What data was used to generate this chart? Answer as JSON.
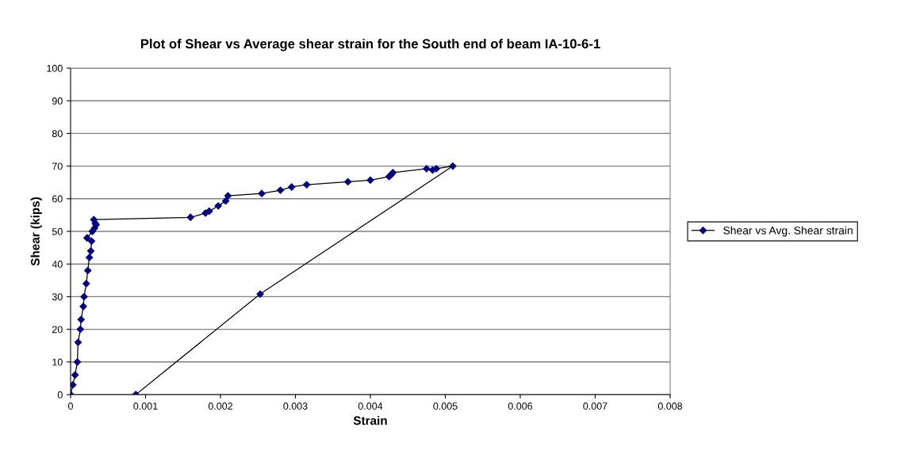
{
  "chart_data": {
    "type": "line",
    "title": "Plot of Shear vs Average shear strain for the South end of beam IA-10-6-1",
    "xlabel": "Strain",
    "ylabel": "Shear (kips)",
    "series": [
      {
        "name": "Shear vs Avg. Shear strain",
        "color": "#000080",
        "x": [
          0,
          3e-05,
          6e-05,
          9e-05,
          0.0001,
          0.00013,
          0.00014,
          0.00017,
          0.00018,
          0.00021,
          0.00023,
          0.00025,
          0.00027,
          0.00028,
          0.00022,
          0.00029,
          0.00032,
          0.00034,
          0.00033,
          0.00031,
          0.0016,
          0.0018,
          0.00185,
          0.00197,
          0.00207,
          0.0021,
          0.00255,
          0.0028,
          0.00295,
          0.00315,
          0.0037,
          0.004,
          0.00425,
          0.00428,
          0.0043,
          0.00475,
          0.00483,
          0.00488,
          0.0051,
          0.00253,
          0.00087
        ],
        "values": [
          0,
          3,
          6,
          10,
          16,
          20,
          23,
          27,
          30,
          34,
          38,
          42,
          44,
          47,
          48,
          50,
          51,
          52,
          52.5,
          53.6,
          54.3,
          55.6,
          56.2,
          57.8,
          59.3,
          60.9,
          61.6,
          62.6,
          63.6,
          64.3,
          65.2,
          65.7,
          66.8,
          67.4,
          68,
          69.2,
          68.8,
          69.2,
          70,
          30.8,
          0
        ]
      }
    ],
    "xlim": [
      0,
      0.008
    ],
    "xticks": [
      0,
      0.001,
      0.002,
      0.003,
      0.004,
      0.005,
      0.006,
      0.007,
      0.008
    ],
    "ylim": [
      0,
      100
    ],
    "yticks": [
      0,
      10,
      20,
      30,
      40,
      50,
      60,
      70,
      80,
      90,
      100
    ],
    "grid": "y",
    "legend": "right",
    "marker": "diamond",
    "line_style": "solid"
  }
}
